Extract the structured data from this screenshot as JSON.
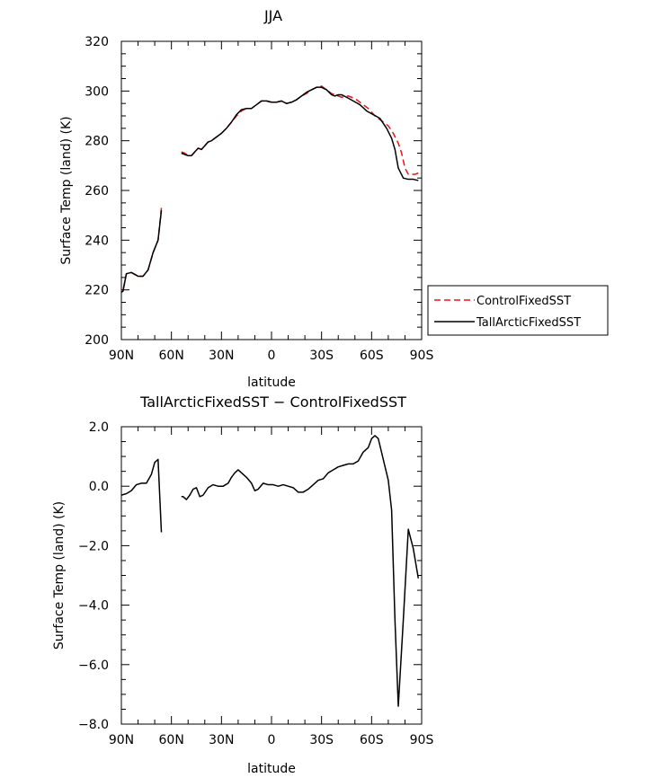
{
  "chart_data": [
    {
      "type": "line",
      "title": "JJA",
      "xlabel": "latitude",
      "ylabel": "Surface Temp (land) (K)",
      "xlim": [
        90,
        -90
      ],
      "ylim": [
        200,
        320
      ],
      "xticks": [
        90,
        60,
        30,
        0,
        -30,
        -60,
        -90
      ],
      "xtick_labels": [
        "90N",
        "60N",
        "30N",
        "0",
        "30S",
        "60S",
        "90S"
      ],
      "yticks": [
        200,
        220,
        240,
        260,
        280,
        300,
        320
      ],
      "ytick_labels": [
        "200",
        "220",
        "240",
        "260",
        "280",
        "300",
        "320"
      ],
      "legend_position": "outside-right",
      "grid": false,
      "series": [
        {
          "name": "ControlFixedSST",
          "color": "#e8141c",
          "dash": "dashed",
          "segments": [
            [
              [
                -88,
                267
              ],
              [
                -86,
                266.5
              ],
              [
                -82,
                266.5
              ],
              [
                -80,
                269
              ],
              [
                -78,
                275
              ],
              [
                -76,
                279
              ],
              [
                -73,
                283
              ],
              [
                -70,
                286
              ],
              [
                -66,
                288
              ],
              [
                -62,
                290
              ],
              [
                -58,
                293
              ],
              [
                -54,
                295
              ],
              [
                -50,
                297
              ],
              [
                -46,
                298
              ],
              [
                -42,
                297.5
              ],
              [
                -40,
                298
              ],
              [
                -38,
                298.5
              ],
              [
                -36,
                299
              ],
              [
                -33,
                300.5
              ],
              [
                -30,
                302
              ],
              [
                -27,
                301.5
              ],
              [
                -24,
                300.5
              ],
              [
                -21,
                299
              ],
              [
                -18,
                298
              ],
              [
                -15,
                296.5
              ],
              [
                -12,
                295.5
              ],
              [
                -9,
                295
              ],
              [
                -6,
                296
              ],
              [
                -3,
                295.5
              ],
              [
                0,
                295.5
              ],
              [
                3,
                296
              ],
              [
                6,
                296
              ],
              [
                9,
                294.5
              ],
              [
                12,
                293
              ],
              [
                15,
                293
              ],
              [
                18,
                292
              ],
              [
                21,
                290
              ],
              [
                24,
                287.5
              ],
              [
                27,
                285
              ],
              [
                30,
                283
              ],
              [
                33,
                281.5
              ],
              [
                36,
                280
              ],
              [
                38,
                279.5
              ],
              [
                40,
                278
              ],
              [
                42,
                276.5
              ],
              [
                44,
                277
              ],
              [
                46,
                275.5
              ],
              [
                48,
                274
              ],
              [
                50,
                274
              ],
              [
                52,
                275
              ],
              [
                54,
                275.5
              ]
            ],
            [
              [
                66,
                253
              ],
              [
                68,
                240
              ],
              [
                71,
                235
              ],
              [
                74,
                228
              ],
              [
                77,
                225.5
              ],
              [
                80,
                225.5
              ],
              [
                84,
                227
              ],
              [
                87,
                226.5
              ],
              [
                89,
                220
              ],
              [
                90,
                219.5
              ]
            ]
          ]
        },
        {
          "name": "TallArcticFixedSST",
          "color": "#000000",
          "dash": "solid",
          "segments": [
            [
              [
                -88,
                264
              ],
              [
                -85,
                264.5
              ],
              [
                -82,
                264.5
              ],
              [
                -79,
                265
              ],
              [
                -76,
                269
              ],
              [
                -74,
                276.5
              ],
              [
                -72,
                281
              ],
              [
                -69,
                285
              ],
              [
                -65,
                289
              ],
              [
                -61,
                290.5
              ],
              [
                -57,
                292
              ],
              [
                -53,
                294.5
              ],
              [
                -49,
                296
              ],
              [
                -45,
                297.5
              ],
              [
                -42,
                298.5
              ],
              [
                -40,
                298.5
              ],
              [
                -38,
                298
              ],
              [
                -36,
                298.5
              ],
              [
                -33,
                300.5
              ],
              [
                -30,
                301.5
              ],
              [
                -27,
                301.5
              ],
              [
                -24,
                300.5
              ],
              [
                -21,
                299.5
              ],
              [
                -18,
                298
              ],
              [
                -15,
                296.5
              ],
              [
                -12,
                295.5
              ],
              [
                -9,
                295
              ],
              [
                -6,
                296
              ],
              [
                -3,
                295.5
              ],
              [
                0,
                295.5
              ],
              [
                3,
                296
              ],
              [
                6,
                296
              ],
              [
                9,
                294.5
              ],
              [
                12,
                293
              ],
              [
                15,
                293
              ],
              [
                18,
                292.5
              ],
              [
                21,
                290.5
              ],
              [
                24,
                287.5
              ],
              [
                27,
                285
              ],
              [
                30,
                283
              ],
              [
                33,
                281.5
              ],
              [
                36,
                280
              ],
              [
                38,
                279.5
              ],
              [
                40,
                278
              ],
              [
                42,
                276.5
              ],
              [
                44,
                277
              ],
              [
                46,
                275.5
              ],
              [
                48,
                274
              ],
              [
                50,
                274
              ],
              [
                52,
                274.5
              ],
              [
                54,
                275
              ]
            ],
            [
              [
                66,
                252
              ],
              [
                68,
                240
              ],
              [
                71,
                235
              ],
              [
                74,
                228
              ],
              [
                77,
                225.5
              ],
              [
                80,
                225.5
              ],
              [
                84,
                227
              ],
              [
                87,
                226.5
              ],
              [
                89,
                219.5
              ],
              [
                90,
                219
              ]
            ]
          ]
        }
      ]
    },
    {
      "type": "line",
      "title": "TallArcticFixedSST − ControlFixedSST",
      "xlabel": "latitude",
      "ylabel": "Surface Temp (land) (K)",
      "xlim": [
        90,
        -90
      ],
      "ylim": [
        -8,
        2
      ],
      "xticks": [
        90,
        60,
        30,
        0,
        -30,
        -60,
        -90
      ],
      "xtick_labels": [
        "90N",
        "60N",
        "30N",
        "0",
        "30S",
        "60S",
        "90S"
      ],
      "yticks": [
        -8,
        -6,
        -4,
        -2,
        0,
        2
      ],
      "ytick_labels": [
        "−8.0",
        "−6.0",
        "−4.0",
        "−2.0",
        "0.0",
        "2.0"
      ],
      "grid": false,
      "series": [
        {
          "color": "#000000",
          "dash": "solid",
          "segments": [
            [
              [
                -88,
                -3.1
              ],
              [
                -85,
                -2.1
              ],
              [
                -82,
                -1.45
              ],
              [
                -79,
                -4.5
              ],
              [
                -76,
                -7.4
              ],
              [
                -74,
                -4.5
              ],
              [
                -72,
                -0.8
              ],
              [
                -70,
                0.2
              ],
              [
                -67,
                0.9
              ],
              [
                -64,
                1.6
              ],
              [
                -62,
                1.7
              ],
              [
                -60,
                1.6
              ],
              [
                -58,
                1.3
              ],
              [
                -55,
                1.15
              ],
              [
                -52,
                0.85
              ],
              [
                -49,
                0.75
              ],
              [
                -46,
                0.75
              ],
              [
                -43,
                0.7
              ],
              [
                -40,
                0.65
              ],
              [
                -37,
                0.55
              ],
              [
                -34,
                0.45
              ],
              [
                -31,
                0.25
              ],
              [
                -28,
                0.2
              ],
              [
                -25,
                0.05
              ],
              [
                -22,
                -0.1
              ],
              [
                -19,
                -0.2
              ],
              [
                -16,
                -0.2
              ],
              [
                -13,
                -0.05
              ],
              [
                -10,
                0.0
              ],
              [
                -7,
                0.05
              ],
              [
                -4,
                0.0
              ],
              [
                -1,
                0.05
              ],
              [
                2,
                0.05
              ],
              [
                5,
                0.1
              ],
              [
                8,
                -0.1
              ],
              [
                10,
                -0.15
              ],
              [
                12,
                0.1
              ],
              [
                15,
                0.3
              ],
              [
                18,
                0.45
              ],
              [
                20,
                0.55
              ],
              [
                22,
                0.45
              ],
              [
                24,
                0.3
              ],
              [
                26,
                0.1
              ],
              [
                29,
                0.0
              ],
              [
                32,
                0.0
              ],
              [
                35,
                0.05
              ],
              [
                38,
                -0.05
              ],
              [
                41,
                -0.3
              ],
              [
                43,
                -0.35
              ],
              [
                45,
                -0.05
              ],
              [
                47,
                -0.1
              ],
              [
                49,
                -0.3
              ],
              [
                51,
                -0.45
              ],
              [
                53,
                -0.35
              ],
              [
                54,
                -0.35
              ]
            ],
            [
              [
                66,
                -1.55
              ],
              [
                68,
                0.9
              ],
              [
                70,
                0.8
              ],
              [
                72,
                0.4
              ],
              [
                75,
                0.1
              ],
              [
                78,
                0.1
              ],
              [
                81,
                0.05
              ],
              [
                84,
                -0.15
              ],
              [
                87,
                -0.25
              ],
              [
                90,
                -0.3
              ]
            ]
          ]
        }
      ]
    }
  ]
}
